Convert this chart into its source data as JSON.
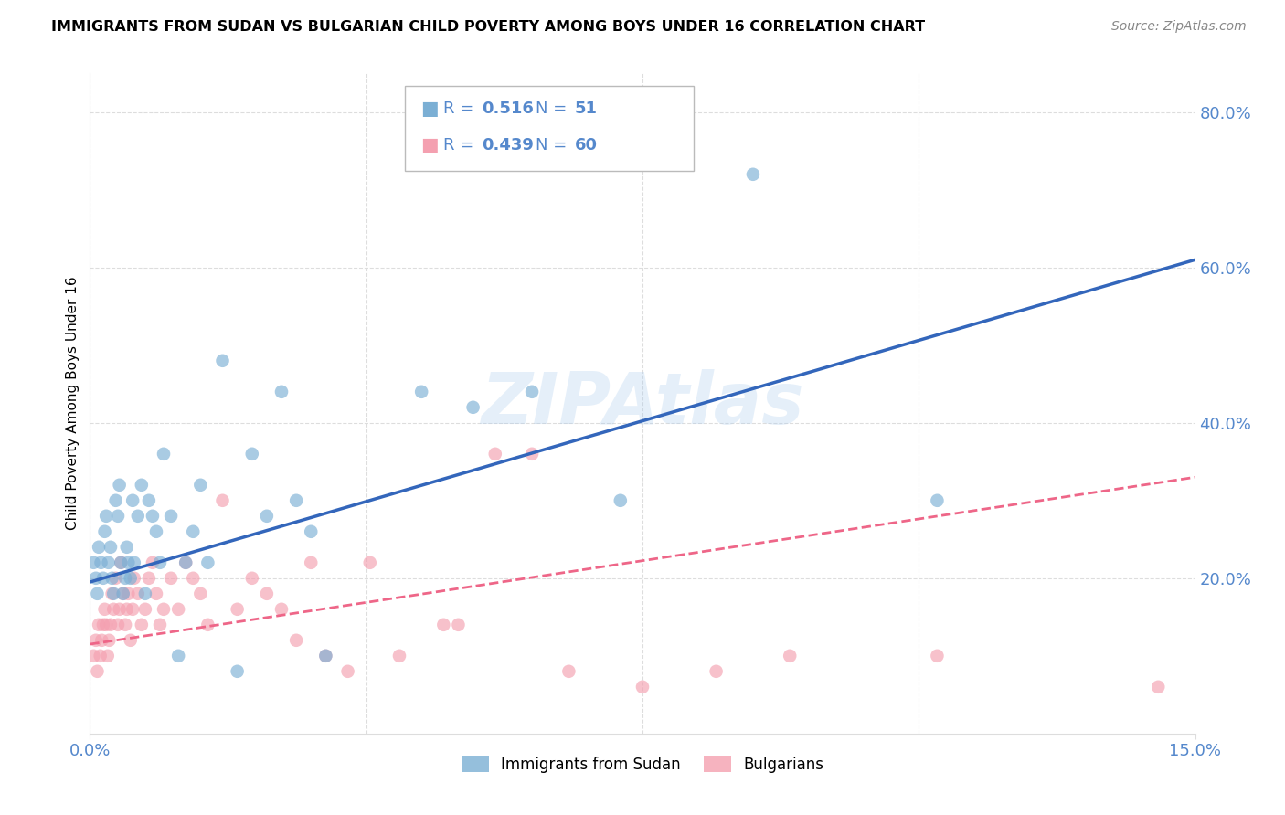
{
  "title": "IMMIGRANTS FROM SUDAN VS BULGARIAN CHILD POVERTY AMONG BOYS UNDER 16 CORRELATION CHART",
  "source": "Source: ZipAtlas.com",
  "ylabel": "Child Poverty Among Boys Under 16",
  "xlim": [
    0.0,
    15.0
  ],
  "ylim": [
    0.0,
    85.0
  ],
  "yticks": [
    20.0,
    40.0,
    60.0,
    80.0
  ],
  "xtick_labels": [
    "0.0%",
    "15.0%"
  ],
  "xtick_positions": [
    0.0,
    15.0
  ],
  "ytick_labels": [
    "20.0%",
    "40.0%",
    "60.0%",
    "80.0%"
  ],
  "watermark": "ZIPAtlas",
  "blue_color": "#7BAFD4",
  "pink_color": "#F4A0B0",
  "blue_line_color": "#3366BB",
  "pink_line_color": "#EE6688",
  "axis_color": "#5588CC",
  "grid_color": "#DDDDDD",
  "blue_trendline_x": [
    0.0,
    15.0
  ],
  "blue_trendline_y": [
    19.5,
    61.0
  ],
  "pink_trendline_x": [
    0.0,
    15.0
  ],
  "pink_trendline_y": [
    11.5,
    33.0
  ],
  "blue_scatter_x": [
    0.05,
    0.08,
    0.1,
    0.12,
    0.15,
    0.18,
    0.2,
    0.22,
    0.25,
    0.28,
    0.3,
    0.32,
    0.35,
    0.38,
    0.4,
    0.42,
    0.45,
    0.48,
    0.5,
    0.52,
    0.55,
    0.58,
    0.6,
    0.65,
    0.7,
    0.75,
    0.8,
    0.85,
    0.9,
    0.95,
    1.0,
    1.1,
    1.2,
    1.3,
    1.4,
    1.5,
    1.6,
    1.8,
    2.0,
    2.2,
    2.4,
    2.6,
    2.8,
    3.0,
    3.2,
    4.5,
    5.2,
    6.0,
    7.2,
    9.0,
    11.5
  ],
  "blue_scatter_y": [
    22.0,
    20.0,
    18.0,
    24.0,
    22.0,
    20.0,
    26.0,
    28.0,
    22.0,
    24.0,
    20.0,
    18.0,
    30.0,
    28.0,
    32.0,
    22.0,
    18.0,
    20.0,
    24.0,
    22.0,
    20.0,
    30.0,
    22.0,
    28.0,
    32.0,
    18.0,
    30.0,
    28.0,
    26.0,
    22.0,
    36.0,
    28.0,
    10.0,
    22.0,
    26.0,
    32.0,
    22.0,
    48.0,
    8.0,
    36.0,
    28.0,
    44.0,
    30.0,
    26.0,
    10.0,
    44.0,
    42.0,
    44.0,
    30.0,
    72.0,
    30.0
  ],
  "pink_scatter_x": [
    0.05,
    0.08,
    0.1,
    0.12,
    0.14,
    0.16,
    0.18,
    0.2,
    0.22,
    0.24,
    0.26,
    0.28,
    0.3,
    0.32,
    0.35,
    0.38,
    0.4,
    0.42,
    0.45,
    0.48,
    0.5,
    0.52,
    0.55,
    0.58,
    0.6,
    0.65,
    0.7,
    0.75,
    0.8,
    0.85,
    0.9,
    0.95,
    1.0,
    1.1,
    1.2,
    1.3,
    1.4,
    1.5,
    1.6,
    1.8,
    2.0,
    2.2,
    2.4,
    2.6,
    2.8,
    3.0,
    3.2,
    3.5,
    3.8,
    4.2,
    4.8,
    5.0,
    5.5,
    6.0,
    6.5,
    7.5,
    8.5,
    9.5,
    11.5,
    14.5
  ],
  "pink_scatter_y": [
    10.0,
    12.0,
    8.0,
    14.0,
    10.0,
    12.0,
    14.0,
    16.0,
    14.0,
    10.0,
    12.0,
    14.0,
    18.0,
    16.0,
    20.0,
    14.0,
    16.0,
    22.0,
    18.0,
    14.0,
    16.0,
    18.0,
    12.0,
    16.0,
    20.0,
    18.0,
    14.0,
    16.0,
    20.0,
    22.0,
    18.0,
    14.0,
    16.0,
    20.0,
    16.0,
    22.0,
    20.0,
    18.0,
    14.0,
    30.0,
    16.0,
    20.0,
    18.0,
    16.0,
    12.0,
    22.0,
    10.0,
    8.0,
    22.0,
    10.0,
    14.0,
    14.0,
    36.0,
    36.0,
    8.0,
    6.0,
    8.0,
    10.0,
    10.0,
    6.0
  ]
}
